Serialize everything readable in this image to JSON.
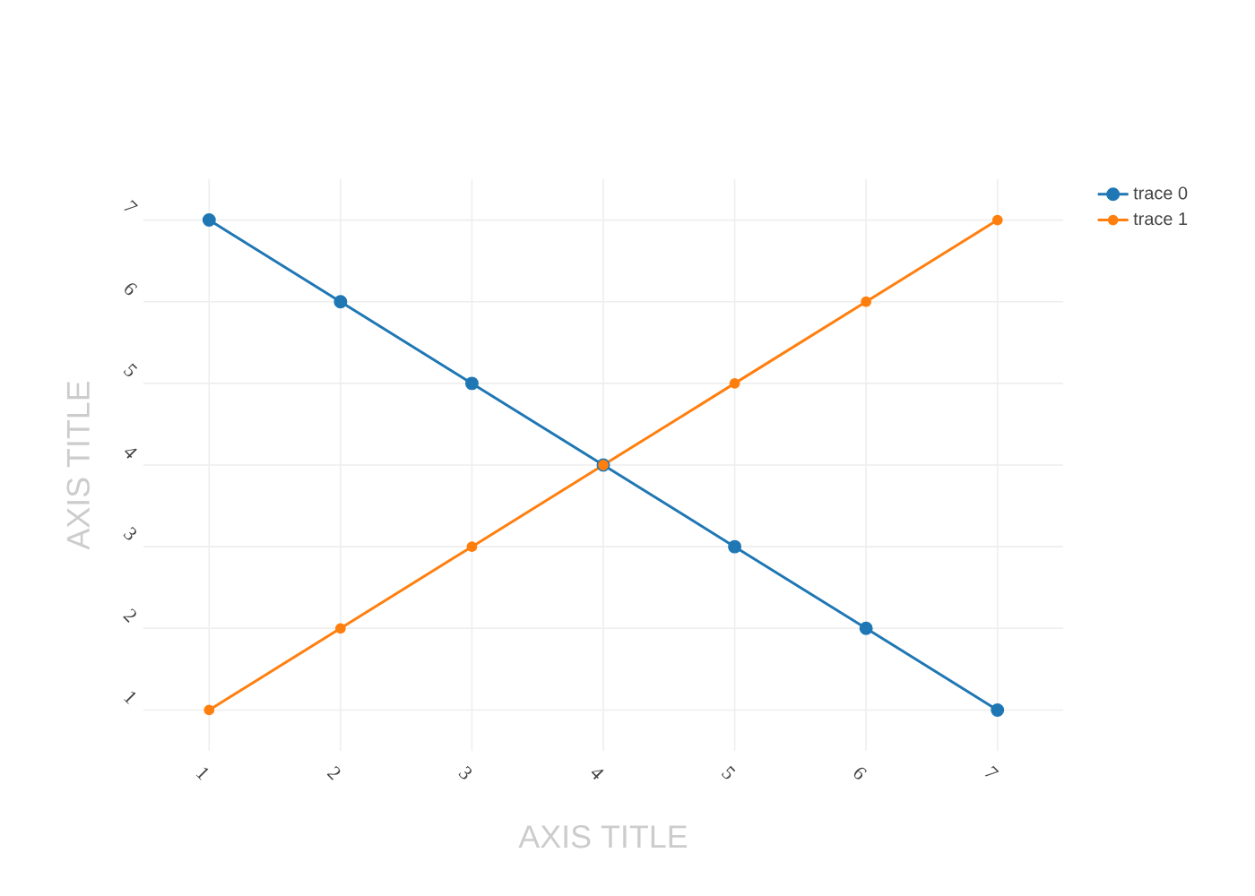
{
  "chart_data": {
    "type": "line",
    "xlabel": "AXIS TITLE",
    "ylabel": "AXIS TITLE",
    "x": [
      1,
      2,
      3,
      4,
      5,
      6,
      7
    ],
    "series": [
      {
        "name": "trace 0",
        "color": "#1f77b4",
        "values": [
          7,
          6,
          5,
          4,
          3,
          2,
          1
        ]
      },
      {
        "name": "trace 1",
        "color": "#ff7f0e",
        "values": [
          1,
          2,
          3,
          4,
          5,
          6,
          7
        ]
      }
    ],
    "xlim": [
      0.5,
      7.5
    ],
    "ylim": [
      0.5,
      7.5
    ],
    "xticks": [
      1,
      2,
      3,
      4,
      5,
      6,
      7
    ],
    "yticks": [
      1,
      2,
      3,
      4,
      5,
      6,
      7
    ],
    "grid": true,
    "legend": "top right",
    "marker": "circle",
    "line_style": "solid"
  }
}
